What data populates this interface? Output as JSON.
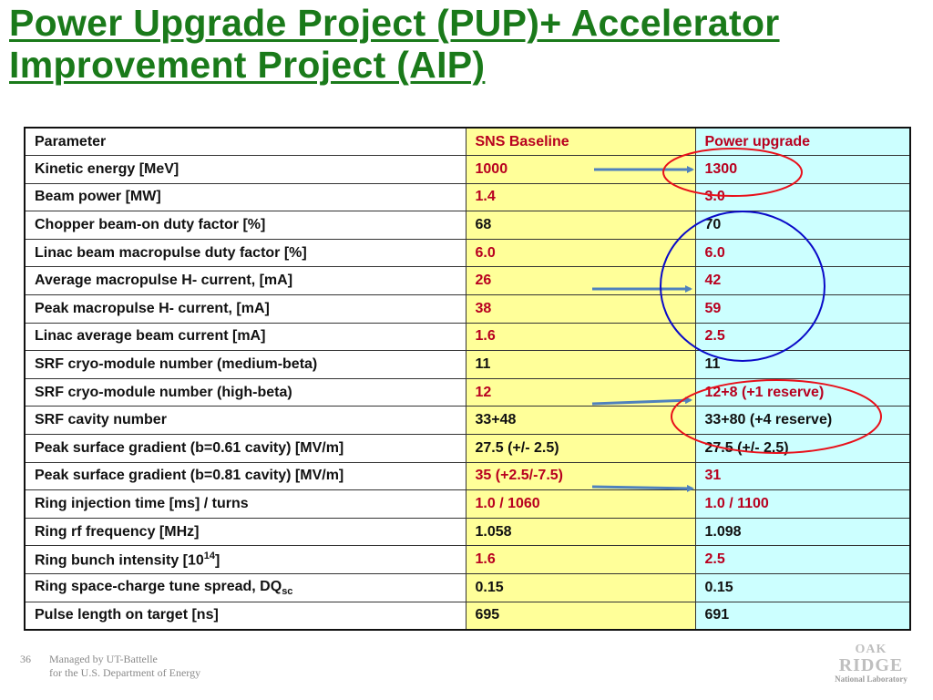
{
  "title": "Power Upgrade Project (PUP)+ Accelerator Improvement Project (AIP)",
  "table": {
    "headers": [
      "Parameter",
      "SNS Baseline",
      "Power upgrade"
    ],
    "rows": [
      {
        "param": "Kinetic energy [MeV]",
        "base": "1000",
        "up": "1300",
        "red": true
      },
      {
        "param": "Beam power  [MW]",
        "base": "1.4",
        "up": "3.0",
        "red": true
      },
      {
        "param": "Chopper beam-on duty factor [%]",
        "base": "68",
        "up": "70",
        "red": false
      },
      {
        "param": "Linac beam macropulse duty factor [%]",
        "base": "6.0",
        "up": "6.0",
        "red": true
      },
      {
        "param": "Average macropulse H- current, [mA]",
        "base": "26",
        "up": "42",
        "red": true
      },
      {
        "param": "Peak macropulse H- current, [mA]",
        "base": "38",
        "up": "59",
        "red": true
      },
      {
        "param": "Linac average beam current [mA]",
        "base": "1.6",
        "up": "2.5",
        "red": true
      },
      {
        "param": "SRF cryo-module number (medium-beta)",
        "base": "11",
        "up": "11",
        "red": false
      },
      {
        "param": "SRF cryo-module number (high-beta)",
        "base": "12",
        "up": "12+8 (+1 reserve)",
        "red": true
      },
      {
        "param": "SRF cavity number",
        "base": "33+48",
        "up": "33+80 (+4 reserve)",
        "red": false
      },
      {
        "param": "Peak surface gradient  (b=0.61 cavity) [MV/m]",
        "base": "27.5 (+/- 2.5)",
        "up": "27.5 (+/- 2.5)",
        "red": false
      },
      {
        "param": "Peak surface gradient  (b=0.81 cavity) [MV/m]",
        "base": "35 (+2.5/-7.5)",
        "up": "31",
        "red": true
      },
      {
        "param": "Ring injection time [ms] / turns",
        "base": "1.0 / 1060",
        "up": "1.0 / 1100",
        "red": true
      },
      {
        "param": "Ring rf frequency [MHz]",
        "base": "1.058",
        "up": "1.098",
        "red": false
      },
      {
        "param": "Ring bunch intensity [10",
        "param_sup": "14",
        "param_tail": "]",
        "base": "1.6",
        "up": "2.5",
        "red": true
      },
      {
        "param": "Ring space-charge tune spread, DQ",
        "param_sub": "sc",
        "base": "0.15",
        "up": "0.15",
        "red": false
      },
      {
        "param": "Pulse length on target [ns]",
        "base": "695",
        "up": "691",
        "red": false
      }
    ]
  },
  "colors": {
    "title": "#1a7a1a",
    "baseline_bg": "#ffff99",
    "upgrade_bg": "#ccffff",
    "red_text": "#b8001f",
    "arrow": "#4f81bd",
    "red_circle": "#e8101a",
    "blue_circle": "#0a0ac8"
  },
  "footer": {
    "page": "36",
    "line1": "Managed by UT-Battelle",
    "line2": "for the U.S. Department of Energy"
  },
  "logo": {
    "line1": "OAK",
    "line2": "RIDGE",
    "line3": "National Laboratory"
  }
}
